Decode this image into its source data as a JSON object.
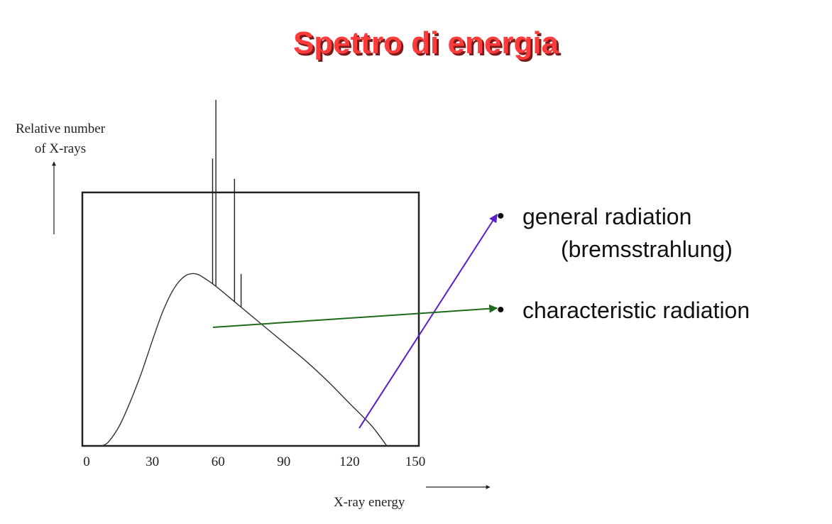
{
  "title": "Spettro di energia",
  "legend": {
    "general": {
      "line1": "general radiation",
      "line2": "(bremsstrahlung)",
      "color": "#5a1ccf"
    },
    "characteristic": {
      "line1": "characteristic radiation",
      "color": "#1e6b1e"
    }
  },
  "chart_data": {
    "type": "line",
    "title": "Spettro di energia",
    "xlabel": "X-ray energy",
    "ylabel_line1": "Relative number",
    "ylabel_line2": "of X-rays",
    "xlim": [
      0,
      150
    ],
    "x_ticks": [
      "0",
      "30",
      "60",
      "90",
      "120",
      "150"
    ],
    "y_axis_ticks": "none",
    "grid": false,
    "series": [
      {
        "x": [
          7,
          10,
          15,
          20,
          25,
          30,
          35,
          40,
          45,
          50,
          55,
          60,
          70,
          80,
          90,
          100,
          110,
          120,
          130,
          137
        ],
        "y": [
          0,
          0.02,
          0.1,
          0.22,
          0.36,
          0.52,
          0.67,
          0.78,
          0.84,
          0.85,
          0.82,
          0.78,
          0.69,
          0.6,
          0.51,
          0.42,
          0.32,
          0.21,
          0.1,
          0.0
        ]
      }
    ],
    "characteristic_lines": [
      {
        "x": 57.5,
        "height": 1.42
      },
      {
        "x": 59,
        "height": 1.71
      },
      {
        "x": 67.5,
        "height": 1.32
      },
      {
        "x": 70.5,
        "height": 0.85
      }
    ]
  }
}
